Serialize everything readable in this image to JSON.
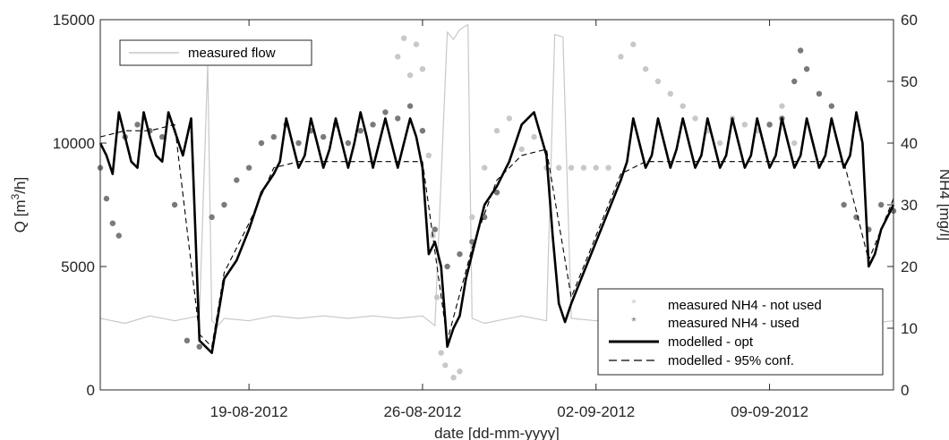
{
  "chart_data": {
    "type": "line",
    "title": "",
    "xlabel": "date [dd-mm-yyyy]",
    "ylabel_left": "Q [m³/h]",
    "ylabel_left_base": "Q [m",
    "ylabel_left_sup": "3",
    "ylabel_left_tail": "/h]",
    "ylabel_right": "NH4 [mg/l]",
    "xlim": [
      "2012-08-13 00:00",
      "2012-09-14 00:00"
    ],
    "ylim_left": [
      0,
      15000
    ],
    "ylim_right": [
      0,
      60
    ],
    "x_ticks": [
      {
        "date": "2012-08-19",
        "label": "19-08-2012"
      },
      {
        "date": "2012-08-26",
        "label": "26-08-2012"
      },
      {
        "date": "2012-09-02",
        "label": "02-09-2012"
      },
      {
        "date": "2012-09-09",
        "label": "09-09-2012"
      }
    ],
    "y_ticks_left": [
      {
        "value": 0,
        "label": "0"
      },
      {
        "value": 5000,
        "label": "5000"
      },
      {
        "value": 10000,
        "label": "10000"
      },
      {
        "value": 15000,
        "label": "15000"
      }
    ],
    "y_ticks_right": [
      {
        "value": 0,
        "label": "0"
      },
      {
        "value": 10,
        "label": "10"
      },
      {
        "value": 20,
        "label": "20"
      },
      {
        "value": 30,
        "label": "30"
      },
      {
        "value": 40,
        "label": "40"
      },
      {
        "value": 50,
        "label": "50"
      },
      {
        "value": 60,
        "label": "60"
      }
    ],
    "grid": false,
    "legends": [
      {
        "placement": "top-left",
        "entries": [
          "measured flow"
        ]
      },
      {
        "placement": "bottom-right",
        "entries": [
          "measured NH4 - not used",
          "measured NH4 - used",
          "modelled - opt",
          "modelled - 95% conf."
        ]
      }
    ],
    "series": [
      {
        "name": "measured flow",
        "axis": "left",
        "style": "thin-line",
        "color": "#c8c8c8",
        "x": [
          "2012-08-13 00:00",
          "2012-08-14 00:00",
          "2012-08-15 00:00",
          "2012-08-16 00:00",
          "2012-08-17 00:00",
          "2012-08-17 08:00",
          "2012-08-17 12:00",
          "2012-08-17 18:00",
          "2012-08-18 00:00",
          "2012-08-19 00:00",
          "2012-08-20 00:00",
          "2012-08-21 00:00",
          "2012-08-22 00:00",
          "2012-08-23 00:00",
          "2012-08-24 00:00",
          "2012-08-25 00:00",
          "2012-08-26 00:00",
          "2012-08-26 12:00",
          "2012-08-27 00:00",
          "2012-08-27 06:00",
          "2012-08-27 12:00",
          "2012-08-27 20:00",
          "2012-08-28 00:00",
          "2012-08-28 12:00",
          "2012-08-29 00:00",
          "2012-08-30 00:00",
          "2012-08-31 00:00",
          "2012-08-31 08:00",
          "2012-08-31 16:00",
          "2012-09-01 00:00",
          "2012-09-02 00:00",
          "2012-09-03 00:00",
          "2012-09-04 00:00",
          "2012-09-05 00:00",
          "2012-09-06 00:00",
          "2012-09-07 00:00",
          "2012-09-08 00:00",
          "2012-09-09 00:00",
          "2012-09-10 00:00",
          "2012-09-11 00:00",
          "2012-09-12 00:00",
          "2012-09-13 00:00",
          "2012-09-14 00:00"
        ],
        "values": [
          2900,
          2700,
          3000,
          2800,
          3000,
          13200,
          2800,
          2600,
          2900,
          2800,
          3000,
          2900,
          3000,
          2900,
          3000,
          2900,
          3000,
          2600,
          14500,
          14200,
          14600,
          14800,
          2900,
          2700,
          2800,
          3000,
          2800,
          14400,
          14300,
          2900,
          2800,
          3000,
          2900,
          2800,
          3000,
          2900,
          2700,
          2900,
          2800,
          3000,
          2900,
          2700,
          2800
        ]
      },
      {
        "name": "measured NH4 - not used",
        "axis": "right",
        "style": "markers",
        "color": "#c8c8c8",
        "x": [
          "2012-08-25 00:00",
          "2012-08-25 06:00",
          "2012-08-25 12:00",
          "2012-08-25 18:00",
          "2012-08-26 00:00",
          "2012-08-26 06:00",
          "2012-08-26 10:00",
          "2012-08-26 14:00",
          "2012-08-26 18:00",
          "2012-08-26 22:00",
          "2012-08-27 06:00",
          "2012-08-27 12:00",
          "2012-08-28 00:00",
          "2012-08-28 12:00",
          "2012-08-29 00:00",
          "2012-08-29 12:00",
          "2012-08-30 00:00",
          "2012-08-30 12:00",
          "2012-08-31 00:00",
          "2012-08-31 12:00",
          "2012-09-01 00:00",
          "2012-09-01 12:00",
          "2012-09-02 00:00",
          "2012-09-02 12:00",
          "2012-09-03 00:00",
          "2012-09-03 12:00",
          "2012-09-04 00:00",
          "2012-09-04 12:00",
          "2012-09-05 00:00",
          "2012-09-05 12:00",
          "2012-09-06 00:00",
          "2012-09-06 12:00",
          "2012-09-07 00:00",
          "2012-09-07 12:00",
          "2012-09-08 00:00",
          "2012-09-08 12:00",
          "2012-09-09 00:00",
          "2012-09-09 12:00",
          "2012-09-10 00:00"
        ],
        "values": [
          54,
          57,
          51,
          56,
          52,
          38,
          25,
          15,
          6,
          4,
          2,
          3,
          28,
          36,
          42,
          44,
          39,
          41,
          36,
          36,
          36,
          36,
          36,
          36,
          54,
          56,
          52,
          50,
          48,
          46,
          44,
          42,
          40,
          44,
          43,
          42,
          43,
          46,
          40
        ]
      },
      {
        "name": "measured NH4 - used",
        "axis": "right",
        "style": "markers",
        "color": "#7a7a7a",
        "x": [
          "2012-08-13 00:00",
          "2012-08-13 06:00",
          "2012-08-13 12:00",
          "2012-08-13 18:00",
          "2012-08-14 00:00",
          "2012-08-14 12:00",
          "2012-08-15 00:00",
          "2012-08-15 12:00",
          "2012-08-16 00:00",
          "2012-08-16 12:00",
          "2012-08-17 00:00",
          "2012-08-17 12:00",
          "2012-08-18 00:00",
          "2012-08-18 12:00",
          "2012-08-19 00:00",
          "2012-08-19 12:00",
          "2012-08-20 00:00",
          "2012-08-20 12:00",
          "2012-08-21 00:00",
          "2012-08-21 12:00",
          "2012-08-22 00:00",
          "2012-08-22 12:00",
          "2012-08-23 00:00",
          "2012-08-23 12:00",
          "2012-08-24 00:00",
          "2012-08-24 12:00",
          "2012-08-25 00:00",
          "2012-08-25 12:00",
          "2012-08-26 00:00",
          "2012-08-26 12:00",
          "2012-08-27 00:00",
          "2012-08-27 12:00",
          "2012-08-28 00:00",
          "2012-08-28 12:00",
          "2012-08-29 00:00",
          "2012-09-09 00:00",
          "2012-09-09 12:00",
          "2012-09-10 00:00",
          "2012-09-10 06:00",
          "2012-09-10 12:00",
          "2012-09-11 00:00",
          "2012-09-11 12:00",
          "2012-09-12 00:00",
          "2012-09-12 12:00",
          "2012-09-13 00:00",
          "2012-09-13 12:00",
          "2012-09-14 00:00"
        ],
        "values": [
          36,
          31,
          27,
          25,
          41,
          43,
          42,
          41,
          30,
          8,
          7,
          28,
          30,
          34,
          36,
          40,
          41,
          43,
          40,
          42,
          41,
          43,
          40,
          42,
          43,
          45,
          44,
          46,
          42,
          26,
          20,
          22,
          24,
          28,
          32,
          43,
          44,
          50,
          55,
          52,
          48,
          46,
          30,
          28,
          26,
          30,
          29
        ]
      },
      {
        "name": "modelled - opt",
        "axis": "right",
        "style": "thick-line",
        "color": "#000000",
        "x": [
          "2012-08-13 00:00",
          "2012-08-13 06:00",
          "2012-08-13 12:00",
          "2012-08-13 18:00",
          "2012-08-14 00:00",
          "2012-08-14 06:00",
          "2012-08-14 12:00",
          "2012-08-14 18:00",
          "2012-08-15 00:00",
          "2012-08-15 06:00",
          "2012-08-15 12:00",
          "2012-08-15 18:00",
          "2012-08-16 00:00",
          "2012-08-16 08:00",
          "2012-08-16 16:00",
          "2012-08-17 00:00",
          "2012-08-17 12:00",
          "2012-08-18 00:00",
          "2012-08-18 12:00",
          "2012-08-19 00:00",
          "2012-08-19 12:00",
          "2012-08-20 00:00",
          "2012-08-20 06:00",
          "2012-08-20 12:00",
          "2012-08-20 18:00",
          "2012-08-21 00:00",
          "2012-08-21 06:00",
          "2012-08-21 12:00",
          "2012-08-21 18:00",
          "2012-08-22 00:00",
          "2012-08-22 06:00",
          "2012-08-22 12:00",
          "2012-08-22 18:00",
          "2012-08-23 00:00",
          "2012-08-23 06:00",
          "2012-08-23 12:00",
          "2012-08-23 18:00",
          "2012-08-24 00:00",
          "2012-08-24 06:00",
          "2012-08-24 12:00",
          "2012-08-24 18:00",
          "2012-08-25 00:00",
          "2012-08-25 06:00",
          "2012-08-25 12:00",
          "2012-08-25 18:00",
          "2012-08-26 00:00",
          "2012-08-26 06:00",
          "2012-08-26 12:00",
          "2012-08-26 18:00",
          "2012-08-27 00:00",
          "2012-08-27 06:00",
          "2012-08-27 12:00",
          "2012-08-27 18:00",
          "2012-08-28 00:00",
          "2012-08-28 12:00",
          "2012-08-29 00:00",
          "2012-08-29 12:00",
          "2012-08-30 00:00",
          "2012-08-30 12:00",
          "2012-08-31 00:00",
          "2012-08-31 06:00",
          "2012-08-31 12:00",
          "2012-08-31 18:00",
          "2012-09-01 00:00",
          "2012-09-01 12:00",
          "2012-09-02 00:00",
          "2012-09-02 12:00",
          "2012-09-03 00:00",
          "2012-09-03 06:00",
          "2012-09-03 12:00",
          "2012-09-03 18:00",
          "2012-09-04 00:00",
          "2012-09-04 06:00",
          "2012-09-04 12:00",
          "2012-09-04 18:00",
          "2012-09-05 00:00",
          "2012-09-05 06:00",
          "2012-09-05 12:00",
          "2012-09-05 18:00",
          "2012-09-06 00:00",
          "2012-09-06 06:00",
          "2012-09-06 12:00",
          "2012-09-06 18:00",
          "2012-09-07 00:00",
          "2012-09-07 06:00",
          "2012-09-07 12:00",
          "2012-09-07 18:00",
          "2012-09-08 00:00",
          "2012-09-08 06:00",
          "2012-09-08 12:00",
          "2012-09-08 18:00",
          "2012-09-09 00:00",
          "2012-09-09 06:00",
          "2012-09-09 12:00",
          "2012-09-09 18:00",
          "2012-09-10 00:00",
          "2012-09-10 06:00",
          "2012-09-10 12:00",
          "2012-09-10 18:00",
          "2012-09-11 00:00",
          "2012-09-11 06:00",
          "2012-09-11 12:00",
          "2012-09-11 18:00",
          "2012-09-12 00:00",
          "2012-09-12 06:00",
          "2012-09-12 12:00",
          "2012-09-12 18:00",
          "2012-09-13 00:00",
          "2012-09-13 06:00",
          "2012-09-13 12:00",
          "2012-09-13 18:00",
          "2012-09-14 00:00"
        ],
        "values": [
          40,
          38,
          35,
          45,
          41,
          37,
          36,
          45,
          41,
          38,
          37,
          45,
          42,
          38,
          44,
          8,
          6,
          18,
          21,
          26,
          32,
          35,
          37,
          44,
          40,
          36,
          38,
          44,
          40,
          36,
          39,
          44,
          40,
          36,
          40,
          45,
          41,
          36,
          40,
          44,
          40,
          36,
          40,
          44,
          41,
          36,
          22,
          24,
          20,
          7,
          10,
          12,
          18,
          22,
          30,
          33,
          37,
          43,
          45,
          38,
          25,
          14,
          11,
          14,
          19,
          24,
          29,
          34,
          37,
          44,
          40,
          36,
          38,
          44,
          40,
          36,
          39,
          44,
          40,
          36,
          38,
          44,
          40,
          36,
          38,
          44,
          40,
          36,
          38,
          44,
          40,
          36,
          38,
          44,
          40,
          36,
          38,
          44,
          40,
          36,
          38,
          44,
          40,
          36,
          38,
          45,
          40,
          20,
          22,
          26,
          28,
          30
        ]
      },
      {
        "name": "modelled - 95% conf.",
        "axis": "right",
        "style": "dashed-line",
        "color": "#000000",
        "x": [
          "2012-08-13 00:00",
          "2012-08-14 00:00",
          "2012-08-15 00:00",
          "2012-08-16 00:00",
          "2012-08-17 00:00",
          "2012-08-17 12:00",
          "2012-08-18 00:00",
          "2012-08-19 00:00",
          "2012-08-20 00:00",
          "2012-08-21 00:00",
          "2012-08-22 00:00",
          "2012-08-23 00:00",
          "2012-08-24 00:00",
          "2012-08-25 00:00",
          "2012-08-26 00:00",
          "2012-08-27 00:00",
          "2012-08-28 00:00",
          "2012-08-29 00:00",
          "2012-08-30 00:00",
          "2012-08-31 00:00",
          "2012-09-01 00:00",
          "2012-09-02 00:00",
          "2012-09-03 00:00",
          "2012-09-04 00:00",
          "2012-09-05 00:00",
          "2012-09-06 00:00",
          "2012-09-07 00:00",
          "2012-09-08 00:00",
          "2012-09-09 00:00",
          "2012-09-10 00:00",
          "2012-09-11 00:00",
          "2012-09-12 00:00",
          "2012-09-13 00:00",
          "2012-09-14 00:00"
        ],
        "values": [
          41,
          42,
          42,
          43,
          9,
          7,
          19,
          27,
          36,
          37,
          37,
          37,
          37,
          37,
          37,
          8,
          23,
          34,
          38,
          39,
          15,
          25,
          35,
          37,
          37,
          37,
          37,
          37,
          37,
          37,
          37,
          37,
          21,
          31
        ]
      }
    ]
  }
}
